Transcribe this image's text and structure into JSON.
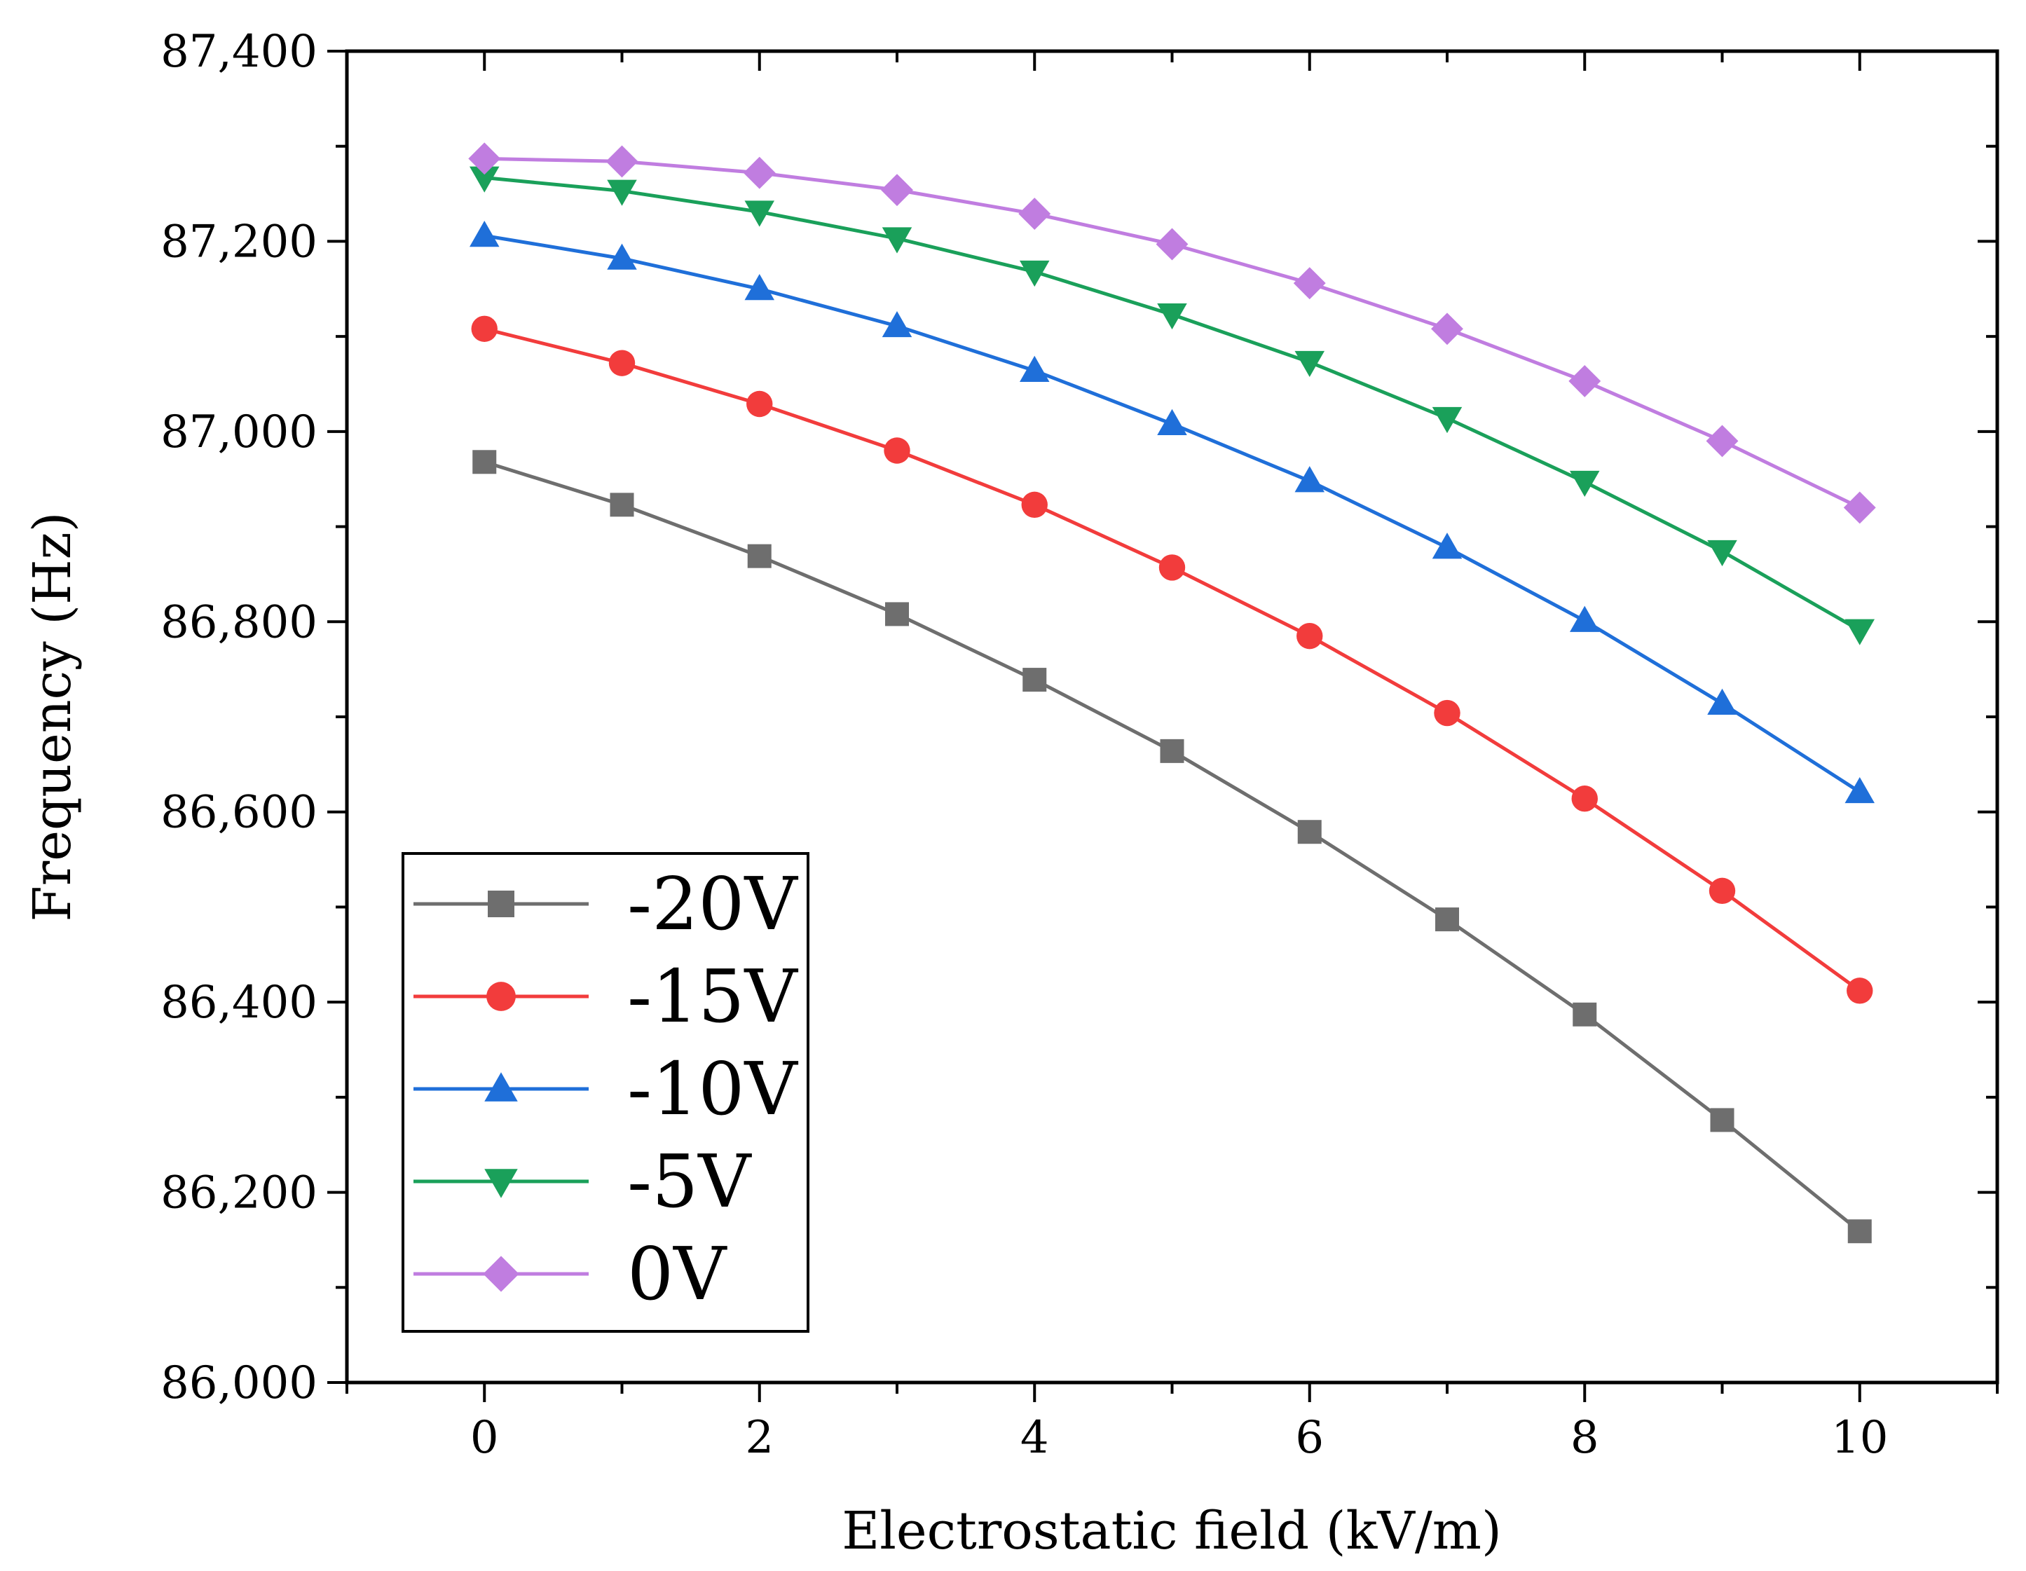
{
  "chart_data": {
    "type": "line",
    "title": "",
    "xlabel": "Electrostatic field (kV/m)",
    "ylabel": "Frequency (Hz)",
    "xlim": [
      -1,
      11
    ],
    "ylim": [
      86000,
      87400
    ],
    "x_ticks": [
      0,
      2,
      4,
      6,
      8,
      10
    ],
    "x_tick_labels": [
      "0",
      "2",
      "4",
      "6",
      "8",
      "10"
    ],
    "y_ticks": [
      86000,
      86200,
      86400,
      86600,
      86800,
      87000,
      87200,
      87400
    ],
    "y_tick_labels": [
      "86,000",
      "86,200",
      "86,400",
      "86,600",
      "86,800",
      "87,000",
      "87,200",
      "87,400"
    ],
    "grid": false,
    "legend_position": "bottom-left",
    "x": [
      0,
      1,
      2,
      3,
      4,
      5,
      6,
      7,
      8,
      9,
      10
    ],
    "series": [
      {
        "name": "-20V",
        "color": "#6e6e6e",
        "marker": "square",
        "values": [
          86968,
          86923,
          86869,
          86808,
          86739,
          86664,
          86579,
          86487,
          86387,
          86276,
          86159
        ]
      },
      {
        "name": "-15V",
        "color": "#f23c3c",
        "marker": "circle",
        "values": [
          87108,
          87072,
          87029,
          86980,
          86923,
          86857,
          86785,
          86704,
          86614,
          86517,
          86412
        ]
      },
      {
        "name": "-10V",
        "color": "#1f6fd9",
        "marker": "triangle-up",
        "values": [
          87206,
          87182,
          87150,
          87111,
          87064,
          87008,
          86948,
          86878,
          86801,
          86714,
          86621
        ]
      },
      {
        "name": "-5V",
        "color": "#1aa05a",
        "marker": "triangle-down",
        "values": [
          87267,
          87253,
          87231,
          87203,
          87168,
          87123,
          87073,
          87014,
          86947,
          86874,
          86791
        ]
      },
      {
        "name": "0V",
        "color": "#c07de0",
        "marker": "diamond",
        "values": [
          87287,
          87284,
          87272,
          87254,
          87229,
          87197,
          87156,
          87108,
          87053,
          86990,
          86920
        ]
      }
    ]
  }
}
